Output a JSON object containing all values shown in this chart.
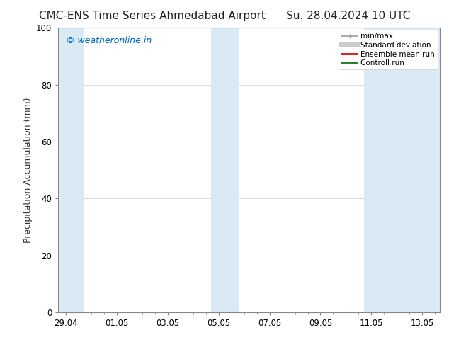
{
  "title": "CMC-ENS Time Series Ahmedabad Airport      Su. 28.04.2024 10 UTC",
  "ylabel": "Precipitation Accumulation (mm)",
  "watermark": "© weatheronline.in",
  "watermark_color": "#0066cc",
  "ylim": [
    0,
    100
  ],
  "yticks": [
    0,
    20,
    40,
    60,
    80,
    100
  ],
  "x_tick_labels": [
    "29.04",
    "01.05",
    "03.05",
    "05.05",
    "07.05",
    "09.05",
    "11.05",
    "13.05"
  ],
  "x_tick_positions": [
    0,
    2,
    4,
    6,
    8,
    10,
    12,
    14
  ],
  "xlim": [
    -0.3,
    14.7
  ],
  "shaded_regions": [
    {
      "x_start": -0.3,
      "x_end": 0.7,
      "color": "#daeaf5"
    },
    {
      "x_start": 5.7,
      "x_end": 6.8,
      "color": "#daeaf5"
    },
    {
      "x_start": 11.7,
      "x_end": 14.7,
      "color": "#daeaf5"
    }
  ],
  "legend_entries": [
    {
      "label": "min/max",
      "color": "#999999",
      "lw": 1.2,
      "ls": "-",
      "type": "line_with_caps"
    },
    {
      "label": "Standard deviation",
      "color": "#cccccc",
      "lw": 5,
      "ls": "-",
      "type": "thick_line"
    },
    {
      "label": "Ensemble mean run",
      "color": "#cc0000",
      "lw": 1.2,
      "ls": "-",
      "type": "line"
    },
    {
      "label": "Controll run",
      "color": "#006600",
      "lw": 1.2,
      "ls": "-",
      "type": "line"
    }
  ],
  "bg_color": "#ffffff",
  "plot_bg_color": "#ffffff",
  "spine_color": "#888888",
  "tick_color": "#333333",
  "title_fontsize": 11,
  "axis_label_fontsize": 9,
  "tick_fontsize": 8.5,
  "watermark_fontsize": 9
}
